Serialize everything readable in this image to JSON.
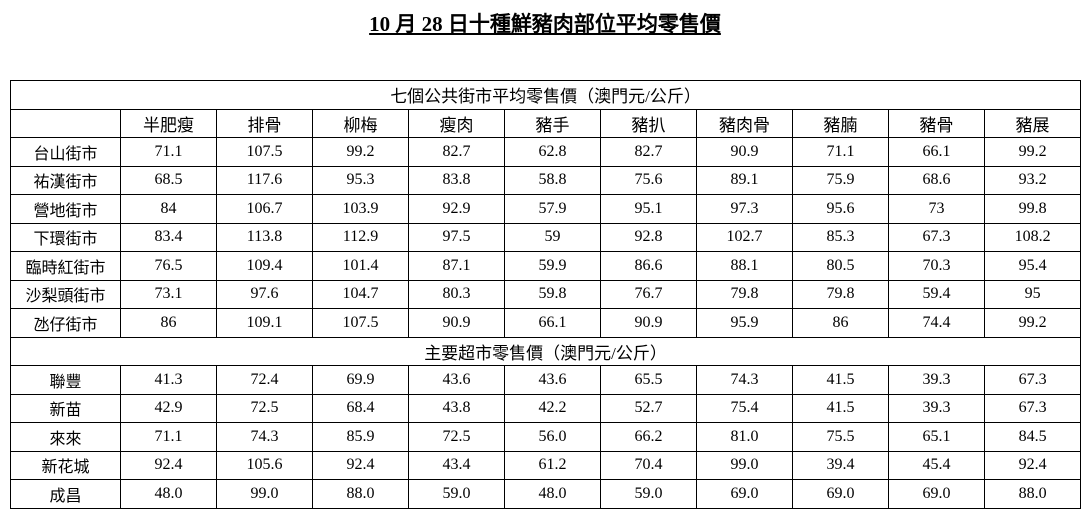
{
  "title": "10 月 28 日十種鮮豬肉部位平均零售價",
  "table": {
    "columns": [
      "半肥瘦",
      "排骨",
      "柳梅",
      "瘦肉",
      "豬手",
      "豬扒",
      "豬肉骨",
      "豬腩",
      "豬骨",
      "豬展"
    ],
    "sections": [
      {
        "title": "七個公共街市平均零售價（澳門元/公斤）",
        "rows": [
          {
            "name": "台山街市",
            "values": [
              "71.1",
              "107.5",
              "99.2",
              "82.7",
              "62.8",
              "82.7",
              "90.9",
              "71.1",
              "66.1",
              "99.2"
            ]
          },
          {
            "name": "祐漢街市",
            "values": [
              "68.5",
              "117.6",
              "95.3",
              "83.8",
              "58.8",
              "75.6",
              "89.1",
              "75.9",
              "68.6",
              "93.2"
            ]
          },
          {
            "name": "營地街市",
            "values": [
              "84",
              "106.7",
              "103.9",
              "92.9",
              "57.9",
              "95.1",
              "97.3",
              "95.6",
              "73",
              "99.8"
            ]
          },
          {
            "name": "下環街市",
            "values": [
              "83.4",
              "113.8",
              "112.9",
              "97.5",
              "59",
              "92.8",
              "102.7",
              "85.3",
              "67.3",
              "108.2"
            ]
          },
          {
            "name": "臨時紅街市",
            "values": [
              "76.5",
              "109.4",
              "101.4",
              "87.1",
              "59.9",
              "86.6",
              "88.1",
              "80.5",
              "70.3",
              "95.4"
            ]
          },
          {
            "name": "沙梨頭街市",
            "values": [
              "73.1",
              "97.6",
              "104.7",
              "80.3",
              "59.8",
              "76.7",
              "79.8",
              "79.8",
              "59.4",
              "95"
            ]
          },
          {
            "name": "氹仔街市",
            "values": [
              "86",
              "109.1",
              "107.5",
              "90.9",
              "66.1",
              "90.9",
              "95.9",
              "86",
              "74.4",
              "99.2"
            ]
          }
        ]
      },
      {
        "title": "主要超市零售價（澳門元/公斤）",
        "rows": [
          {
            "name": "聯豐",
            "values": [
              "41.3",
              "72.4",
              "69.9",
              "43.6",
              "43.6",
              "65.5",
              "74.3",
              "41.5",
              "39.3",
              "67.3"
            ]
          },
          {
            "name": "新苗",
            "values": [
              "42.9",
              "72.5",
              "68.4",
              "43.8",
              "42.2",
              "52.7",
              "75.4",
              "41.5",
              "39.3",
              "67.3"
            ]
          },
          {
            "name": "來來",
            "values": [
              "71.1",
              "74.3",
              "85.9",
              "72.5",
              "56.0",
              "66.2",
              "81.0",
              "75.5",
              "65.1",
              "84.5"
            ]
          },
          {
            "name": "新花城",
            "values": [
              "92.4",
              "105.6",
              "92.4",
              "43.4",
              "61.2",
              "70.4",
              "99.0",
              "39.4",
              "45.4",
              "92.4"
            ]
          },
          {
            "name": "成昌",
            "values": [
              "48.0",
              "99.0",
              "88.0",
              "59.0",
              "48.0",
              "59.0",
              "69.0",
              "69.0",
              "69.0",
              "88.0"
            ]
          }
        ]
      }
    ]
  }
}
